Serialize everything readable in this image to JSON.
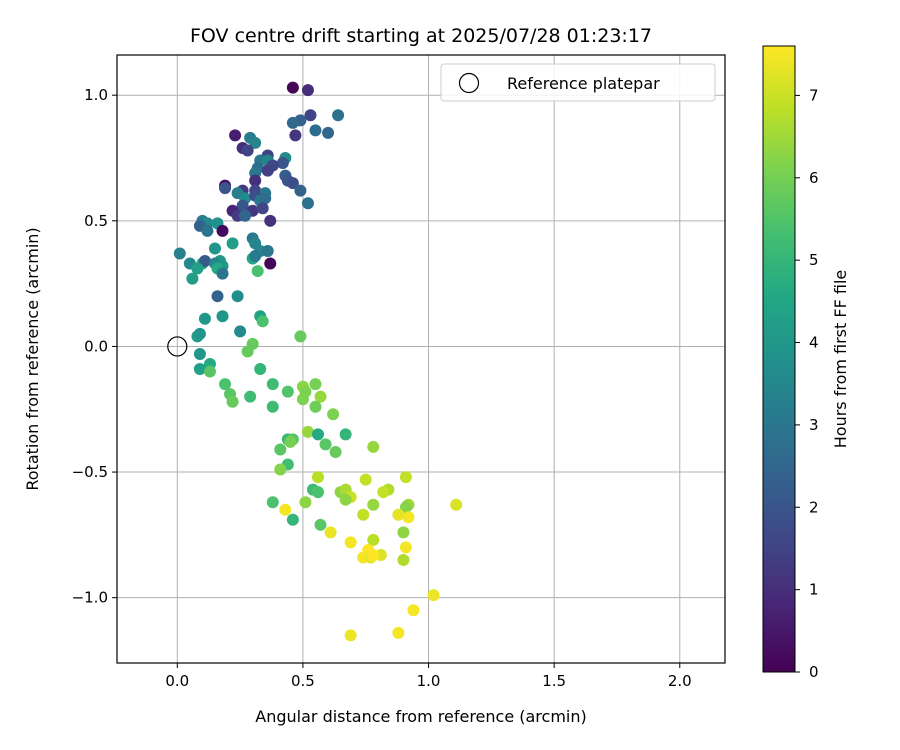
{
  "chart_data": {
    "type": "scatter",
    "title": "FOV centre drift starting at 2025/07/28 01:23:17",
    "xlabel": "Angular distance from reference (arcmin)",
    "ylabel": "Rotation from reference (arcmin)",
    "xlim": [
      -0.24,
      2.18
    ],
    "ylim": [
      -1.26,
      1.16
    ],
    "xticks": [
      0.0,
      0.5,
      1.0,
      1.5,
      2.0
    ],
    "xtick_labels": [
      "0.0",
      "0.5",
      "1.0",
      "1.5",
      "2.0"
    ],
    "yticks": [
      -1.0,
      -0.5,
      0.0,
      0.5,
      1.0
    ],
    "ytick_labels": [
      "−1.0",
      "−0.5",
      "0.0",
      "0.5",
      "1.0"
    ],
    "grid": true,
    "legend": {
      "placement": "top-right",
      "entries": [
        "Reference platepar"
      ]
    },
    "reference_point": {
      "x": 0.0,
      "y": 0.0,
      "marker": "open-circle"
    },
    "colorbar": {
      "label": "Hours from first FF file",
      "range": [
        0,
        7.6
      ],
      "ticks": [
        0,
        1,
        2,
        3,
        4,
        5,
        6,
        7
      ],
      "tick_labels": [
        "0",
        "1",
        "2",
        "3",
        "4",
        "5",
        "6",
        "7"
      ],
      "colormap": "viridis"
    },
    "points": [
      {
        "x": 0.46,
        "y": 1.03,
        "h": 0.1
      },
      {
        "x": 0.52,
        "y": 1.02,
        "h": 1.0
      },
      {
        "x": 0.53,
        "y": 0.92,
        "h": 1.5
      },
      {
        "x": 0.49,
        "y": 0.9,
        "h": 2.3
      },
      {
        "x": 0.46,
        "y": 0.89,
        "h": 2.6
      },
      {
        "x": 0.64,
        "y": 0.92,
        "h": 2.8
      },
      {
        "x": 0.55,
        "y": 0.86,
        "h": 2.7
      },
      {
        "x": 0.6,
        "y": 0.85,
        "h": 2.5
      },
      {
        "x": 0.47,
        "y": 0.84,
        "h": 1.2
      },
      {
        "x": 0.23,
        "y": 0.84,
        "h": 0.6
      },
      {
        "x": 0.29,
        "y": 0.83,
        "h": 3.2
      },
      {
        "x": 0.31,
        "y": 0.81,
        "h": 3.4
      },
      {
        "x": 0.26,
        "y": 0.79,
        "h": 1.0
      },
      {
        "x": 0.28,
        "y": 0.78,
        "h": 1.5
      },
      {
        "x": 0.36,
        "y": 0.76,
        "h": 1.5
      },
      {
        "x": 0.33,
        "y": 0.74,
        "h": 3.0
      },
      {
        "x": 0.36,
        "y": 0.74,
        "h": 3.4
      },
      {
        "x": 0.43,
        "y": 0.75,
        "h": 3.6
      },
      {
        "x": 0.42,
        "y": 0.73,
        "h": 2.0
      },
      {
        "x": 0.38,
        "y": 0.72,
        "h": 1.6
      },
      {
        "x": 0.32,
        "y": 0.71,
        "h": 2.8
      },
      {
        "x": 0.36,
        "y": 0.7,
        "h": 1.4
      },
      {
        "x": 0.31,
        "y": 0.69,
        "h": 3.0
      },
      {
        "x": 0.43,
        "y": 0.68,
        "h": 2.2
      },
      {
        "x": 0.44,
        "y": 0.66,
        "h": 2.0
      },
      {
        "x": 0.46,
        "y": 0.65,
        "h": 1.8
      },
      {
        "x": 0.31,
        "y": 0.66,
        "h": 1.0
      },
      {
        "x": 0.19,
        "y": 0.64,
        "h": 0.3
      },
      {
        "x": 0.19,
        "y": 0.63,
        "h": 2.0
      },
      {
        "x": 0.26,
        "y": 0.62,
        "h": 1.3
      },
      {
        "x": 0.31,
        "y": 0.62,
        "h": 1.6
      },
      {
        "x": 0.35,
        "y": 0.61,
        "h": 3.0
      },
      {
        "x": 0.49,
        "y": 0.62,
        "h": 2.4
      },
      {
        "x": 0.24,
        "y": 0.61,
        "h": 3.2
      },
      {
        "x": 0.27,
        "y": 0.59,
        "h": 3.6
      },
      {
        "x": 0.31,
        "y": 0.6,
        "h": 1.8
      },
      {
        "x": 0.33,
        "y": 0.58,
        "h": 3.0
      },
      {
        "x": 0.35,
        "y": 0.59,
        "h": 2.7
      },
      {
        "x": 0.26,
        "y": 0.56,
        "h": 2.0
      },
      {
        "x": 0.52,
        "y": 0.57,
        "h": 2.8
      },
      {
        "x": 0.22,
        "y": 0.54,
        "h": 0.8
      },
      {
        "x": 0.3,
        "y": 0.54,
        "h": 1.2
      },
      {
        "x": 0.34,
        "y": 0.55,
        "h": 1.6
      },
      {
        "x": 0.24,
        "y": 0.52,
        "h": 1.3
      },
      {
        "x": 0.27,
        "y": 0.52,
        "h": 2.5
      },
      {
        "x": 0.37,
        "y": 0.5,
        "h": 1.1
      },
      {
        "x": 0.1,
        "y": 0.5,
        "h": 3.2
      },
      {
        "x": 0.12,
        "y": 0.49,
        "h": 3.6
      },
      {
        "x": 0.09,
        "y": 0.48,
        "h": 2.4
      },
      {
        "x": 0.16,
        "y": 0.49,
        "h": 3.8
      },
      {
        "x": 0.12,
        "y": 0.46,
        "h": 2.9
      },
      {
        "x": 0.18,
        "y": 0.46,
        "h": 0.2
      },
      {
        "x": 0.3,
        "y": 0.43,
        "h": 3.0
      },
      {
        "x": 0.31,
        "y": 0.41,
        "h": 3.4
      },
      {
        "x": 0.22,
        "y": 0.41,
        "h": 4.2
      },
      {
        "x": 0.15,
        "y": 0.39,
        "h": 3.9
      },
      {
        "x": 0.33,
        "y": 0.38,
        "h": 3.5
      },
      {
        "x": 0.36,
        "y": 0.38,
        "h": 3.0
      },
      {
        "x": 0.01,
        "y": 0.37,
        "h": 3.3
      },
      {
        "x": 0.3,
        "y": 0.35,
        "h": 4.5
      },
      {
        "x": 0.31,
        "y": 0.36,
        "h": 3.1
      },
      {
        "x": 0.17,
        "y": 0.34,
        "h": 4.0
      },
      {
        "x": 0.1,
        "y": 0.33,
        "h": 4.6
      },
      {
        "x": 0.05,
        "y": 0.33,
        "h": 3.6
      },
      {
        "x": 0.11,
        "y": 0.34,
        "h": 2.2
      },
      {
        "x": 0.15,
        "y": 0.33,
        "h": 3.5
      },
      {
        "x": 0.18,
        "y": 0.32,
        "h": 4.0
      },
      {
        "x": 0.37,
        "y": 0.33,
        "h": 0.1
      },
      {
        "x": 0.08,
        "y": 0.31,
        "h": 4.3
      },
      {
        "x": 0.16,
        "y": 0.31,
        "h": 4.6
      },
      {
        "x": 0.18,
        "y": 0.29,
        "h": 2.9
      },
      {
        "x": 0.32,
        "y": 0.3,
        "h": 5.4
      },
      {
        "x": 0.06,
        "y": 0.27,
        "h": 4.2
      },
      {
        "x": 0.24,
        "y": 0.2,
        "h": 3.7
      },
      {
        "x": 0.16,
        "y": 0.2,
        "h": 2.4
      },
      {
        "x": 0.18,
        "y": 0.12,
        "h": 4.0
      },
      {
        "x": 0.11,
        "y": 0.11,
        "h": 4.0
      },
      {
        "x": 0.33,
        "y": 0.12,
        "h": 4.4
      },
      {
        "x": 0.34,
        "y": 0.1,
        "h": 5.4
      },
      {
        "x": 0.25,
        "y": 0.06,
        "h": 3.6
      },
      {
        "x": 0.08,
        "y": 0.04,
        "h": 4.2
      },
      {
        "x": 0.49,
        "y": 0.04,
        "h": 5.8
      },
      {
        "x": 0.09,
        "y": 0.05,
        "h": 3.9
      },
      {
        "x": 0.3,
        "y": 0.01,
        "h": 5.8
      },
      {
        "x": 0.28,
        "y": -0.02,
        "h": 5.8
      },
      {
        "x": 0.09,
        "y": -0.03,
        "h": 4.0
      },
      {
        "x": 0.13,
        "y": -0.07,
        "h": 4.6
      },
      {
        "x": 0.09,
        "y": -0.09,
        "h": 4.3
      },
      {
        "x": 0.13,
        "y": -0.1,
        "h": 5.6
      },
      {
        "x": 0.33,
        "y": -0.09,
        "h": 5.0
      },
      {
        "x": 0.19,
        "y": -0.15,
        "h": 5.4
      },
      {
        "x": 0.38,
        "y": -0.15,
        "h": 5.2
      },
      {
        "x": 0.5,
        "y": -0.16,
        "h": 6.3
      },
      {
        "x": 0.55,
        "y": -0.15,
        "h": 6.0
      },
      {
        "x": 0.44,
        "y": -0.18,
        "h": 5.5
      },
      {
        "x": 0.21,
        "y": -0.19,
        "h": 5.6
      },
      {
        "x": 0.29,
        "y": -0.2,
        "h": 5.2
      },
      {
        "x": 0.51,
        "y": -0.18,
        "h": 6.1
      },
      {
        "x": 0.57,
        "y": -0.2,
        "h": 6.4
      },
      {
        "x": 0.5,
        "y": -0.21,
        "h": 6.1
      },
      {
        "x": 0.22,
        "y": -0.22,
        "h": 5.8
      },
      {
        "x": 0.38,
        "y": -0.24,
        "h": 5.2
      },
      {
        "x": 0.55,
        "y": -0.24,
        "h": 5.9
      },
      {
        "x": 0.62,
        "y": -0.27,
        "h": 6.1
      },
      {
        "x": 0.52,
        "y": -0.34,
        "h": 6.4
      },
      {
        "x": 0.56,
        "y": -0.35,
        "h": 4.6
      },
      {
        "x": 0.67,
        "y": -0.35,
        "h": 5.0
      },
      {
        "x": 0.44,
        "y": -0.37,
        "h": 5.1
      },
      {
        "x": 0.46,
        "y": -0.37,
        "h": 5.6
      },
      {
        "x": 0.45,
        "y": -0.38,
        "h": 6.0
      },
      {
        "x": 0.59,
        "y": -0.39,
        "h": 5.6
      },
      {
        "x": 0.41,
        "y": -0.41,
        "h": 5.6
      },
      {
        "x": 0.63,
        "y": -0.42,
        "h": 5.8
      },
      {
        "x": 0.78,
        "y": -0.4,
        "h": 6.4
      },
      {
        "x": 0.44,
        "y": -0.47,
        "h": 5.3
      },
      {
        "x": 0.41,
        "y": -0.49,
        "h": 6.2
      },
      {
        "x": 0.56,
        "y": -0.52,
        "h": 6.8
      },
      {
        "x": 0.75,
        "y": -0.53,
        "h": 6.9
      },
      {
        "x": 0.91,
        "y": -0.52,
        "h": 6.9
      },
      {
        "x": 0.54,
        "y": -0.57,
        "h": 5.2
      },
      {
        "x": 0.56,
        "y": -0.58,
        "h": 5.4
      },
      {
        "x": 0.65,
        "y": -0.58,
        "h": 6.3
      },
      {
        "x": 0.67,
        "y": -0.57,
        "h": 6.6
      },
      {
        "x": 0.69,
        "y": -0.6,
        "h": 7.0
      },
      {
        "x": 0.84,
        "y": -0.57,
        "h": 6.7
      },
      {
        "x": 0.82,
        "y": -0.58,
        "h": 6.9
      },
      {
        "x": 0.38,
        "y": -0.62,
        "h": 5.4
      },
      {
        "x": 0.51,
        "y": -0.62,
        "h": 6.3
      },
      {
        "x": 0.67,
        "y": -0.61,
        "h": 6.3
      },
      {
        "x": 0.78,
        "y": -0.63,
        "h": 6.4
      },
      {
        "x": 0.92,
        "y": -0.63,
        "h": 6.5
      },
      {
        "x": 0.91,
        "y": -0.64,
        "h": 6.2
      },
      {
        "x": 1.11,
        "y": -0.63,
        "h": 7.2
      },
      {
        "x": 0.43,
        "y": -0.65,
        "h": 7.5
      },
      {
        "x": 0.46,
        "y": -0.69,
        "h": 5.0
      },
      {
        "x": 0.74,
        "y": -0.67,
        "h": 6.9
      },
      {
        "x": 0.88,
        "y": -0.67,
        "h": 7.3
      },
      {
        "x": 0.92,
        "y": -0.68,
        "h": 7.5
      },
      {
        "x": 0.57,
        "y": -0.71,
        "h": 5.6
      },
      {
        "x": 0.61,
        "y": -0.74,
        "h": 7.4
      },
      {
        "x": 0.9,
        "y": -0.74,
        "h": 6.3
      },
      {
        "x": 0.69,
        "y": -0.78,
        "h": 7.5
      },
      {
        "x": 0.78,
        "y": -0.77,
        "h": 6.8
      },
      {
        "x": 0.76,
        "y": -0.81,
        "h": 7.6
      },
      {
        "x": 0.91,
        "y": -0.8,
        "h": 7.5
      },
      {
        "x": 0.74,
        "y": -0.84,
        "h": 7.5
      },
      {
        "x": 0.77,
        "y": -0.84,
        "h": 7.3
      },
      {
        "x": 0.81,
        "y": -0.83,
        "h": 7.2
      },
      {
        "x": 0.78,
        "y": -0.83,
        "h": 7.6
      },
      {
        "x": 0.9,
        "y": -0.85,
        "h": 6.7
      },
      {
        "x": 1.02,
        "y": -0.99,
        "h": 7.4
      },
      {
        "x": 0.94,
        "y": -1.05,
        "h": 7.5
      },
      {
        "x": 0.69,
        "y": -1.15,
        "h": 7.4
      },
      {
        "x": 0.88,
        "y": -1.14,
        "h": 7.5
      }
    ]
  }
}
